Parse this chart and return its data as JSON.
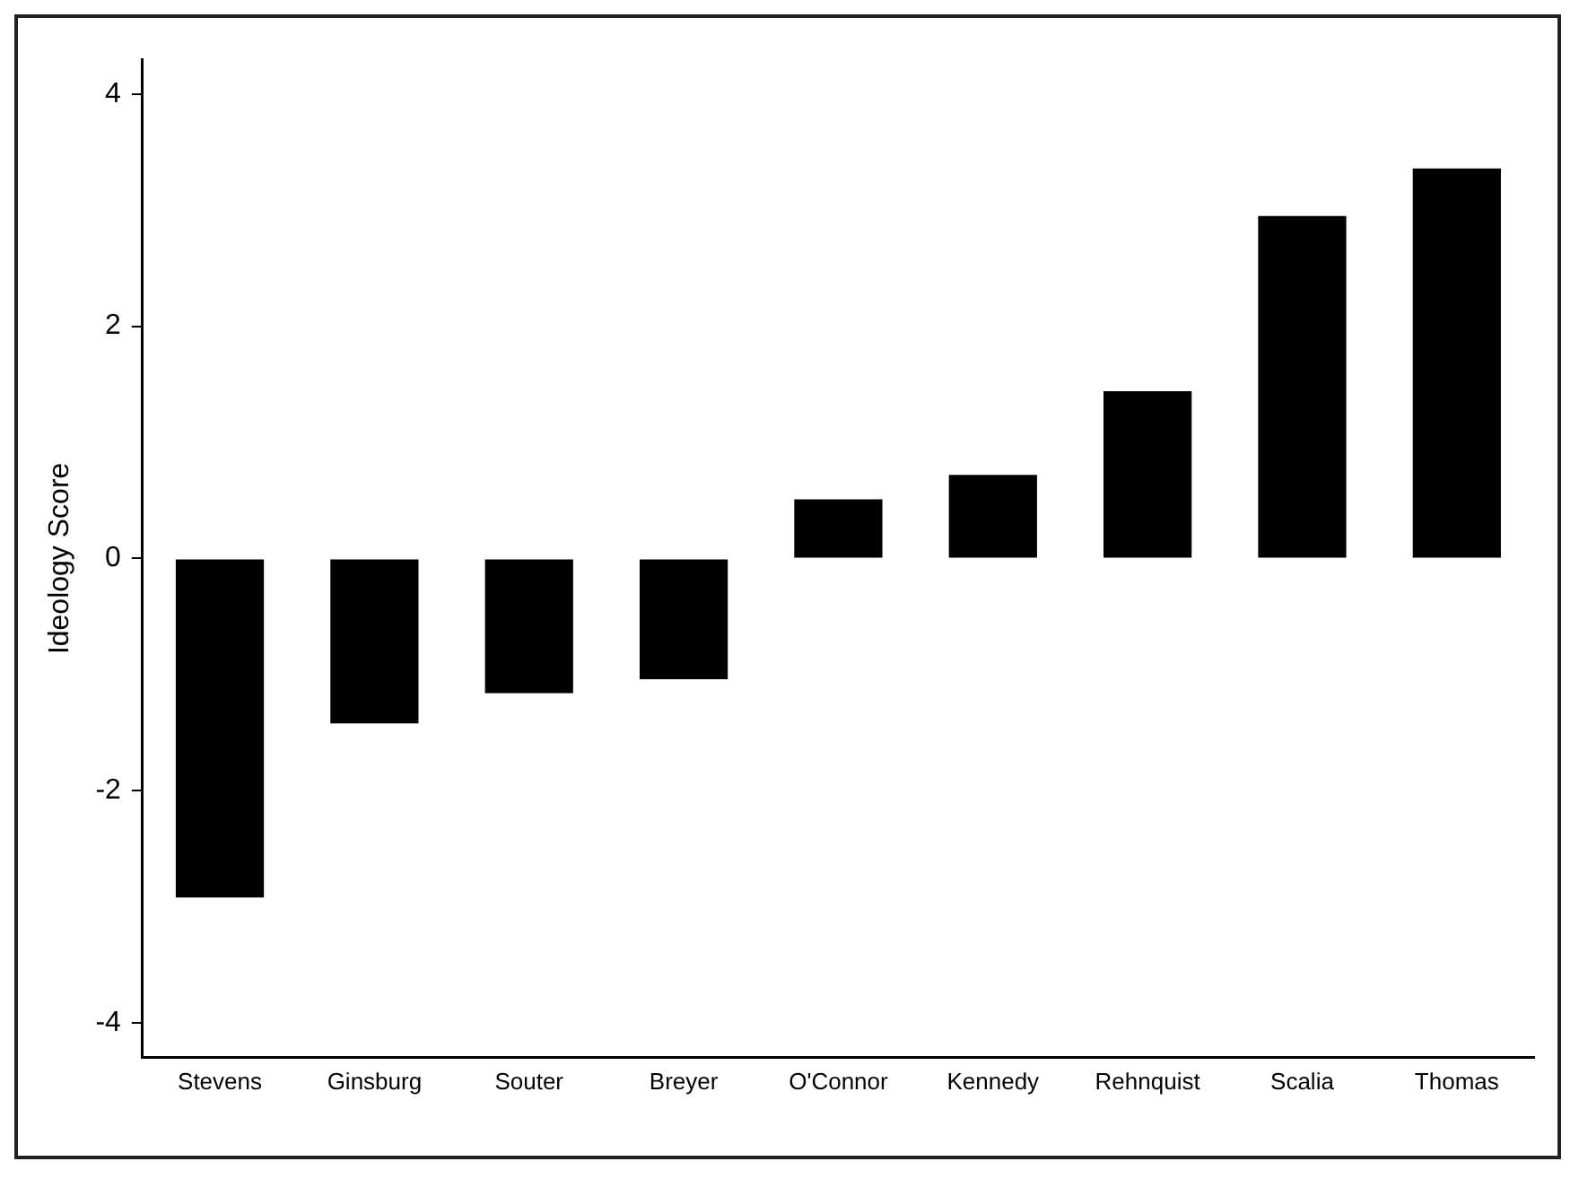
{
  "chart_data": {
    "type": "bar",
    "ylabel": "Ideology Score",
    "categories": [
      "Stevens",
      "Ginsburg",
      "Souter",
      "Breyer",
      "O'Connor",
      "Kennedy",
      "Rehnquist",
      "Scalia",
      "Thomas"
    ],
    "values": [
      -2.92,
      -1.42,
      -1.16,
      -1.04,
      0.51,
      0.72,
      1.44,
      2.95,
      3.36
    ],
    "color": "#000000",
    "ylim": [
      -4.3,
      4.3
    ],
    "yticks": [
      -4,
      -2,
      0,
      2,
      4
    ],
    "grid": false,
    "legend": false
  }
}
